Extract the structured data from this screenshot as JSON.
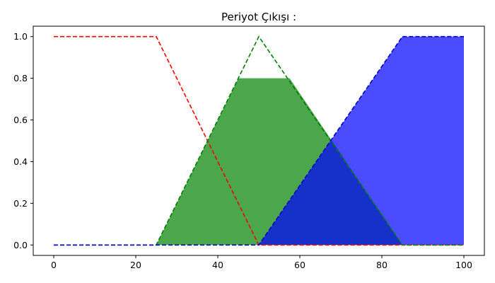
{
  "chart_data": {
    "type": "area",
    "title": "Periyot Çıkışı :",
    "xlabel": "",
    "ylabel": "",
    "xlim": [
      -5,
      105
    ],
    "ylim": [
      -0.05,
      1.05
    ],
    "x_ticks": [
      0,
      20,
      40,
      60,
      80,
      100
    ],
    "y_ticks": [
      0.0,
      0.2,
      0.4,
      0.6,
      0.8,
      1.0
    ],
    "x_tick_labels": [
      "0",
      "20",
      "40",
      "60",
      "80",
      "100"
    ],
    "y_tick_labels": [
      "0.0",
      "0.2",
      "0.4",
      "0.6",
      "0.8",
      "1.0"
    ],
    "grid": false,
    "series": [
      {
        "color": "#ff0000",
        "style": "dashed",
        "x": [
          0,
          25,
          50,
          100
        ],
        "y": [
          1,
          1,
          0,
          0
        ]
      },
      {
        "color": "#008000",
        "style": "dashed",
        "x": [
          0,
          25,
          50,
          85,
          100
        ],
        "y": [
          0,
          0,
          1,
          0,
          0
        ]
      },
      {
        "color": "#0000cc",
        "style": "dashed",
        "x": [
          0,
          50,
          85,
          100
        ],
        "y": [
          0,
          0,
          1,
          1
        ]
      }
    ],
    "filled_areas": [
      {
        "color": "#008000",
        "opacity": 0.7,
        "x": [
          25,
          45,
          57.5,
          85
        ],
        "y": [
          0,
          0.8,
          0.8,
          0
        ]
      },
      {
        "color": "#0000ff",
        "opacity": 0.7,
        "x": [
          50,
          85,
          100,
          100
        ],
        "y": [
          0,
          1,
          1,
          0
        ]
      }
    ]
  }
}
